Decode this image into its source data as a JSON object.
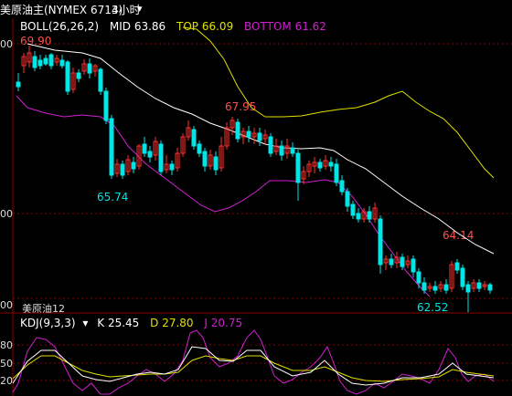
{
  "header": {
    "instrument": "美原油主(NYMEX 6713)",
    "period": "4小时",
    "period_chevron": "▾"
  },
  "boll": {
    "name": "BOLL(26,26,2)",
    "mid_label": "MID",
    "mid_value": "63.86",
    "top_label": "TOP",
    "top_value": "66.09",
    "bottom_label": "BOTTOM",
    "bottom_value": "61.62"
  },
  "kdj": {
    "name": "KDJ(9,3,3)",
    "k_label": "K",
    "k_value": "25.45",
    "d_label": "D",
    "d_value": "27.80",
    "j_label": "J",
    "j_value": "20.75"
  },
  "price_annotations": {
    "high1": "69.90",
    "high2": "67.95",
    "low1": "65.74",
    "high3": "64.14",
    "low2": "62.52"
  },
  "y_axis_labels": [
    "00",
    "00",
    "00"
  ],
  "kdj_axis_labels": [
    "80",
    "50",
    "20"
  ],
  "footer_text": "美原油12",
  "colors": {
    "up": "#ff3030",
    "down": "#00e5e5",
    "mid": "#ffffff",
    "top": "#e0e000",
    "bottom": "#d020d0",
    "k": "#ffffff",
    "d": "#e0e000",
    "j": "#d020d0",
    "grid": "#8b0000"
  }
}
